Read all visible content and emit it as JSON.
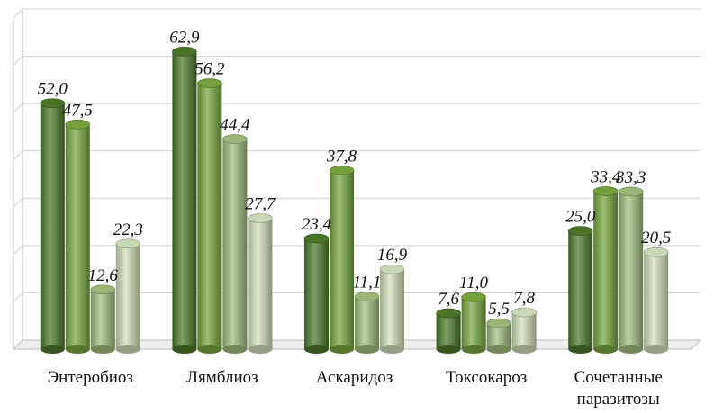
{
  "chart_data": {
    "type": "bar",
    "categories": [
      "Энтеробиоз",
      "Лямблиоз",
      "Аскаридоз",
      "Токсокароз",
      "Сочетанные паразитозы"
    ],
    "category_lines": [
      [
        "Энтеробиоз"
      ],
      [
        "Лямблиоз"
      ],
      [
        "Аскаридоз"
      ],
      [
        "Токсокароз"
      ],
      [
        "Сочетанные",
        "паразитозы"
      ]
    ],
    "series": [
      {
        "values": [
          52.0,
          62.9,
          23.4,
          7.6,
          25.0
        ],
        "labels": [
          "52,0",
          "62,9",
          "23,4",
          "7,6",
          "25,0"
        ],
        "color": "#4f7a2a"
      },
      {
        "values": [
          47.5,
          56.2,
          37.8,
          11.0,
          33.4
        ],
        "labels": [
          "47,5",
          "56,2",
          "37,8",
          "11,0",
          "33,4"
        ],
        "color": "#79a83f"
      },
      {
        "values": [
          12.6,
          44.4,
          11.1,
          5.5,
          33.3
        ],
        "labels": [
          "12,6",
          "44,4",
          "11,1",
          "5,5",
          "33,3"
        ],
        "color": "#a3bf7e"
      },
      {
        "values": [
          22.3,
          27.7,
          16.9,
          7.8,
          20.5
        ],
        "labels": [
          "22,3",
          "27,7",
          "16,9",
          "7,8",
          "20,5"
        ],
        "color": "#d3e2bd"
      }
    ],
    "ylim": [
      0,
      70
    ],
    "grid": true,
    "title": "",
    "xlabel": "",
    "ylabel": ""
  }
}
